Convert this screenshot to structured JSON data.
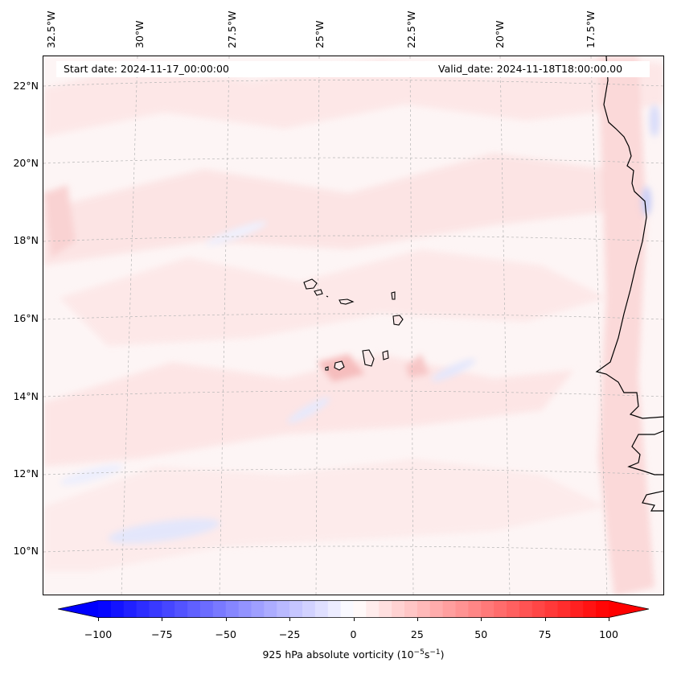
{
  "map": {
    "start_date_text": "Start date: 2024-11-17_00:00:00",
    "valid_date_text": "Valid_date: 2024-11-18T18:00:00.00",
    "lon_labels": [
      "32.5°W",
      "30°W",
      "27.5°W",
      "25°W",
      "22.5°W",
      "20°W",
      "17.5°W"
    ],
    "lat_labels": [
      "22°N",
      "20°N",
      "18°N",
      "16°N",
      "14°N",
      "12°N",
      "10°N"
    ],
    "field": "925 hPa absolute vorticity",
    "colors": {
      "negative": "#0000ff",
      "positive": "#ff0000",
      "neutral": "#ffffff",
      "coast": "#000000",
      "grid": "#b0b0b0"
    }
  },
  "colorbar": {
    "label_prefix": "925 hPa absolute vorticity (10",
    "label_exp1": "−5",
    "label_mid": "s",
    "label_exp2": "−1",
    "label_suffix": ")",
    "min": -100,
    "max": 100,
    "ticks": [
      "−100",
      "−75",
      "−50",
      "−25",
      "0",
      "25",
      "50",
      "75",
      "100"
    ],
    "extend": "both"
  }
}
